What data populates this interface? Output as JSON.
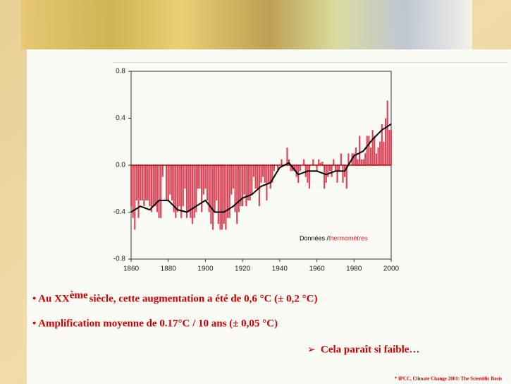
{
  "chart_data": {
    "type": "bar",
    "x": [
      1860,
      1861,
      1862,
      1863,
      1864,
      1865,
      1866,
      1867,
      1868,
      1869,
      1870,
      1871,
      1872,
      1873,
      1874,
      1875,
      1876,
      1877,
      1878,
      1879,
      1880,
      1881,
      1882,
      1883,
      1884,
      1885,
      1886,
      1887,
      1888,
      1889,
      1890,
      1891,
      1892,
      1893,
      1894,
      1895,
      1896,
      1897,
      1898,
      1899,
      1900,
      1901,
      1902,
      1903,
      1904,
      1905,
      1906,
      1907,
      1908,
      1909,
      1910,
      1911,
      1912,
      1913,
      1914,
      1915,
      1916,
      1917,
      1918,
      1919,
      1920,
      1921,
      1922,
      1923,
      1924,
      1925,
      1926,
      1927,
      1928,
      1929,
      1930,
      1931,
      1932,
      1933,
      1934,
      1935,
      1936,
      1937,
      1938,
      1939,
      1940,
      1941,
      1942,
      1943,
      1944,
      1945,
      1946,
      1947,
      1948,
      1949,
      1950,
      1951,
      1952,
      1953,
      1954,
      1955,
      1956,
      1957,
      1958,
      1959,
      1960,
      1961,
      1962,
      1963,
      1964,
      1965,
      1966,
      1967,
      1968,
      1969,
      1970,
      1971,
      1972,
      1973,
      1974,
      1975,
      1976,
      1977,
      1978,
      1979,
      1980,
      1981,
      1982,
      1983,
      1984,
      1985,
      1986,
      1987,
      1988,
      1989,
      1990,
      1991,
      1992,
      1993,
      1994,
      1995,
      1996,
      1997,
      1998,
      1999,
      2000
    ],
    "series": [
      {
        "color": "#d9475a",
        "values": [
          -0.35,
          -0.45,
          -0.55,
          -0.3,
          -0.45,
          -0.3,
          -0.3,
          -0.35,
          -0.3,
          -0.3,
          -0.35,
          -0.4,
          -0.35,
          -0.35,
          -0.4,
          -0.45,
          -0.45,
          -0.1,
          0.0,
          -0.3,
          -0.3,
          -0.25,
          -0.3,
          -0.4,
          -0.45,
          -0.4,
          -0.35,
          -0.45,
          -0.35,
          -0.2,
          -0.45,
          -0.4,
          -0.45,
          -0.5,
          -0.45,
          -0.4,
          -0.2,
          -0.2,
          -0.4,
          -0.25,
          -0.2,
          -0.3,
          -0.4,
          -0.5,
          -0.55,
          -0.4,
          -0.3,
          -0.5,
          -0.55,
          -0.55,
          -0.5,
          -0.55,
          -0.45,
          -0.45,
          -0.25,
          -0.2,
          -0.4,
          -0.5,
          -0.4,
          -0.35,
          -0.35,
          -0.25,
          -0.35,
          -0.3,
          -0.3,
          -0.25,
          -0.1,
          -0.2,
          -0.2,
          -0.35,
          -0.15,
          -0.1,
          -0.15,
          -0.3,
          -0.15,
          -0.2,
          -0.15,
          -0.05,
          0.0,
          -0.05,
          0.0,
          0.05,
          0.0,
          0.0,
          0.15,
          0.05,
          -0.05,
          -0.05,
          -0.05,
          -0.1,
          -0.15,
          -0.05,
          0.0,
          0.05,
          -0.1,
          -0.15,
          -0.2,
          0.0,
          0.05,
          0.0,
          -0.05,
          0.05,
          0.02,
          0.03,
          -0.2,
          -0.15,
          -0.1,
          -0.05,
          -0.1,
          0.05,
          -0.05,
          -0.15,
          -0.05,
          0.1,
          -0.15,
          -0.1,
          -0.2,
          0.1,
          0.0,
          0.1,
          0.1,
          0.15,
          0.05,
          0.25,
          0.05,
          0.05,
          0.1,
          0.25,
          0.25,
          0.15,
          0.3,
          0.25,
          0.1,
          0.15,
          0.2,
          0.35,
          0.2,
          0.4,
          0.55,
          0.3,
          0.3
        ]
      }
    ],
    "smoothed": {
      "color": "#000000",
      "x": [
        1860,
        1865,
        1870,
        1875,
        1880,
        1885,
        1890,
        1895,
        1900,
        1905,
        1910,
        1915,
        1920,
        1925,
        1930,
        1935,
        1940,
        1945,
        1950,
        1955,
        1960,
        1965,
        1970,
        1975,
        1980,
        1985,
        1990,
        1995,
        2000
      ],
      "values": [
        -0.4,
        -0.35,
        -0.38,
        -0.3,
        -0.3,
        -0.38,
        -0.4,
        -0.35,
        -0.3,
        -0.4,
        -0.4,
        -0.35,
        -0.28,
        -0.25,
        -0.18,
        -0.15,
        -0.02,
        0.02,
        -0.08,
        -0.05,
        -0.05,
        -0.08,
        -0.05,
        -0.05,
        0.08,
        0.12,
        0.22,
        0.3,
        0.35
      ]
    },
    "xlim": [
      1860,
      2000
    ],
    "ylim": [
      -0.8,
      0.8
    ],
    "xticks": [
      1860,
      1880,
      1900,
      1920,
      1940,
      1960,
      1980,
      2000
    ],
    "yticks": [
      -0.8,
      -0.4,
      {
        "value": 0,
        "label": "0.0"
      },
      0.4,
      0.8
    ],
    "annotation": [
      "Données / ",
      "thermomètres"
    ],
    "annotation_colors": [
      "#000000",
      "#e0202a"
    ]
  },
  "bullets": [
    [
      "• Au XX",
      "ème",
      " siècle, cette augmentation a été de 0,6 °C (± 0,2 °C)"
    ],
    [
      "• Amplification moyenne de 0.17°C / 10 ans (± 0,05 °C)"
    ]
  ],
  "conclusion": [
    "➢",
    "Cela paraît si faible…"
  ],
  "source": "* IPCC, Climate Change 2001: The Scientific Basis"
}
